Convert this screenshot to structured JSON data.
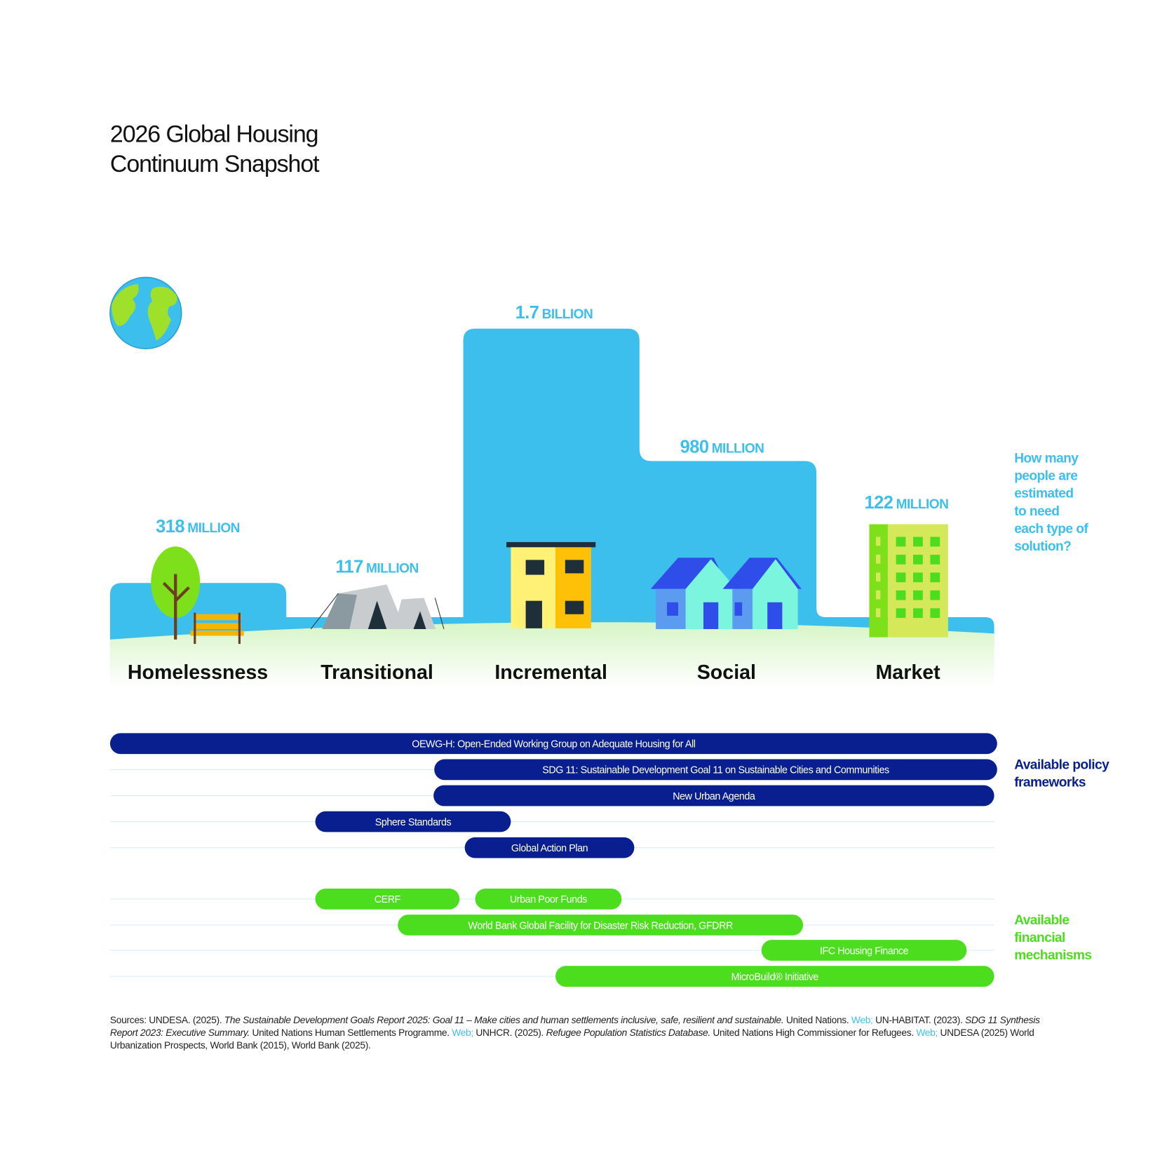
{
  "title": [
    "2026 Global Housing",
    "Continuum Snapshot"
  ],
  "continuum": [
    {
      "label": "Homelessness",
      "number": "318",
      "unit": "MILLION"
    },
    {
      "label": "Transitional",
      "number": "117",
      "unit": "MILLION"
    },
    {
      "label": "Incremental",
      "number": "1.7",
      "unit": "BILLION"
    },
    {
      "label": "Social",
      "number": "980",
      "unit": "MILLION"
    },
    {
      "label": "Market",
      "number": "122",
      "unit": "MILLION"
    }
  ],
  "question": [
    "How many",
    "people are",
    "estimated",
    "to need",
    "each type of",
    "solution?"
  ],
  "policy_frameworks": {
    "heading": [
      "Available policy",
      "frameworks"
    ],
    "bars": [
      "OEWG-H: Open-Ended Working Group on Adequate Housing for All",
      "SDG 11: Sustainable Development Goal 11 on Sustainable Cities and Communities",
      "New Urban Agenda",
      "Sphere Standards",
      "Global Action Plan"
    ]
  },
  "financial_mechanisms": {
    "heading": [
      "Available",
      "financial",
      "mechanisms"
    ],
    "bars": [
      "CERF",
      "Urban Poor Funds",
      "World Bank Global Facility for Disaster Risk Reduction, GFDRR",
      "IFC Housing Finance",
      "MicroBuild® Initiative"
    ]
  },
  "sources": [
    "Sources: UNDESA. (2025). ",
    "The Sustainable Development Goals Report 2025: Goal 11 – Make cities and human settlements inclusive, safe, resilient and sustainable.",
    " United Nations. ",
    "Web;",
    " UN-HABITAT. (2023). ",
    "SDG 11 Synthesis Report 2023: Executive Summary.",
    " United Nations Human Settlements Programme. ",
    "Web;",
    " UNHCR. (2025). ",
    "Refugee Population Statistics Database.",
    " United Nations High Commissioner for Refugees. ",
    "Web;",
    " UNDESA (2025) World Urbanization Prospects, World Bank (2015), World Bank (2025)."
  ]
}
